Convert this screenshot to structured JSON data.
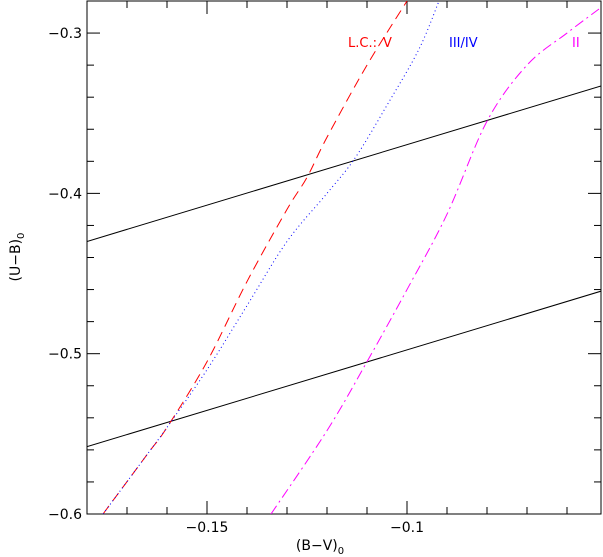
{
  "chart_data": {
    "type": "line",
    "xlabel": "(B−V)",
    "xlabel_sub": "0",
    "ylabel": "(U−B)",
    "ylabel_sub": "0",
    "xlim": [
      -0.18,
      -0.0515
    ],
    "ylim": [
      -0.6,
      -0.28
    ],
    "y_inverted": true,
    "x_ticks_major": [
      -0.15,
      -0.1
    ],
    "x_tick_labels": [
      "−0.15",
      "−0.1"
    ],
    "y_ticks_major": [
      -0.3,
      -0.4,
      -0.5,
      -0.6
    ],
    "y_tick_labels": [
      "−0.3",
      "−0.4",
      "−0.5",
      "−0.6"
    ],
    "legend_title": "L.C.:",
    "series": [
      {
        "name": "V",
        "color": "#ff0000",
        "dash": "10,6",
        "points": [
          [
            -0.176,
            -0.6
          ],
          [
            -0.165,
            -0.563
          ],
          [
            -0.16,
            -0.546
          ],
          [
            -0.15,
            -0.505
          ],
          [
            -0.14,
            -0.455
          ],
          [
            -0.13,
            -0.41
          ],
          [
            -0.125,
            -0.39
          ],
          [
            -0.12,
            -0.365
          ],
          [
            -0.11,
            -0.32
          ],
          [
            -0.1,
            -0.28
          ]
        ]
      },
      {
        "name": "III/IV",
        "color": "#0000ff",
        "dash": "1,3",
        "points": [
          [
            -0.176,
            -0.6
          ],
          [
            -0.165,
            -0.563
          ],
          [
            -0.16,
            -0.546
          ],
          [
            -0.15,
            -0.51
          ],
          [
            -0.14,
            -0.47
          ],
          [
            -0.13,
            -0.43
          ],
          [
            -0.12,
            -0.4
          ],
          [
            -0.113,
            -0.378
          ],
          [
            -0.105,
            -0.345
          ],
          [
            -0.097,
            -0.31
          ],
          [
            -0.092,
            -0.28
          ]
        ]
      },
      {
        "name": "II",
        "color": "#ff00ff",
        "dash": "10,4,2,4",
        "points": [
          [
            -0.134,
            -0.6
          ],
          [
            -0.12,
            -0.548
          ],
          [
            -0.11,
            -0.505
          ],
          [
            -0.1,
            -0.46
          ],
          [
            -0.09,
            -0.413
          ],
          [
            -0.08,
            -0.355
          ],
          [
            -0.07,
            -0.32
          ],
          [
            -0.06,
            -0.3
          ],
          [
            -0.052,
            -0.285
          ]
        ]
      }
    ],
    "reference_lines": [
      {
        "points": [
          [
            -0.18,
            -0.43
          ],
          [
            -0.0515,
            -0.333
          ]
        ]
      },
      {
        "points": [
          [
            -0.18,
            -0.558
          ],
          [
            -0.0515,
            -0.461
          ]
        ]
      }
    ]
  }
}
